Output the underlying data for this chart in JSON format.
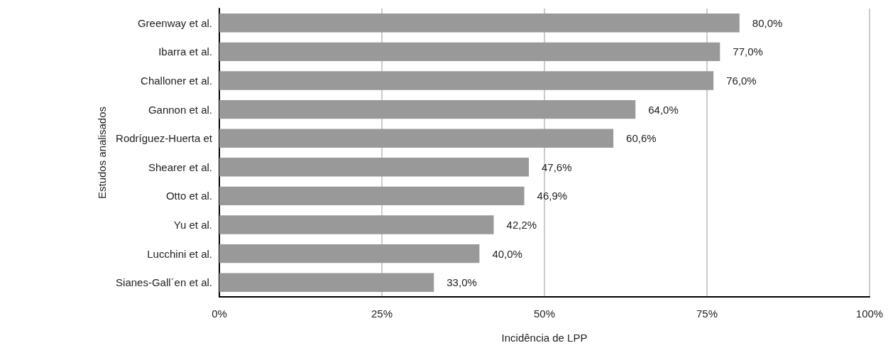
{
  "chart_data": {
    "type": "bar",
    "orientation": "horizontal",
    "xlabel": "Incidência de LPP",
    "ylabel": "Estudos analisados",
    "categories": [
      "Greenway et al.",
      "Ibarra et al.",
      "Challoner et al.",
      "Gannon et al.",
      "Rodríguez-Huerta et",
      "Shearer et al.",
      "Otto et al.",
      "Yu et al.",
      "Lucchini et al.",
      "Sianes-Gall´en et al."
    ],
    "values": [
      80,
      77,
      76,
      64,
      60.6,
      47.6,
      46.9,
      42.2,
      40,
      33
    ],
    "value_labels": [
      "80,0%",
      "77,0%",
      "76,0%",
      "64,0%",
      "60,6%",
      "47,6%",
      "46,9%",
      "42,2%",
      "40,0%",
      "33,0%"
    ],
    "color": "#999999",
    "xlim": [
      0,
      100
    ],
    "xticks": [
      {
        "value": 0,
        "label": "0%"
      },
      {
        "value": 25,
        "label": "25%"
      },
      {
        "value": 50,
        "label": "50%"
      },
      {
        "value": 75,
        "label": "75%"
      },
      {
        "value": 100,
        "label": "100%"
      }
    ],
    "grid": "x"
  }
}
